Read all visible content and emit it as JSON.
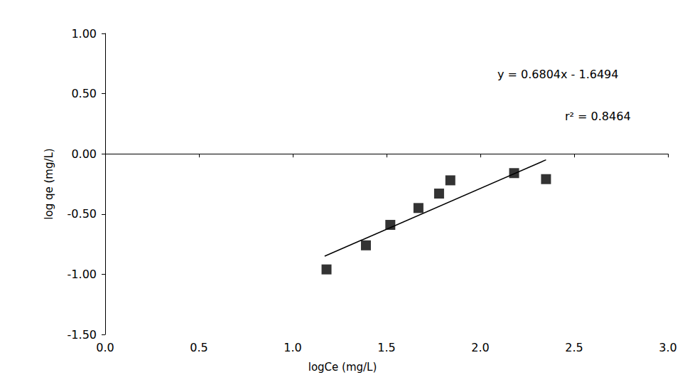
{
  "chart_data": {
    "type": "scatter",
    "x_label": "logCe (mg/L)",
    "y_label": "log qe (mg/L)",
    "xlim": [
      0,
      3
    ],
    "xticks": [
      {
        "value": 0,
        "label": "0.0"
      },
      0.5,
      {
        "value": 1,
        "label": "1.0"
      },
      1.5,
      {
        "value": 2,
        "label": "2.0"
      },
      2.5,
      {
        "value": 3,
        "label": "3.0"
      }
    ],
    "ylim": [
      -1.5,
      1
    ],
    "yticks": [
      {
        "value": -1.5,
        "label": "-1.50"
      },
      {
        "value": -1,
        "label": "-1.00"
      },
      {
        "value": -0.5,
        "label": "-0.50"
      },
      {
        "value": 0,
        "label": "0.00"
      },
      {
        "value": 0.5,
        "label": "0.50"
      },
      {
        "value": 1,
        "label": "1.00"
      }
    ],
    "grid": false,
    "series": [
      {
        "type": "scatter",
        "color": "#000000",
        "marker": "square",
        "x": [
          1.18,
          1.39,
          1.52,
          1.67,
          1.78,
          1.84,
          2.18,
          2.35
        ],
        "values": [
          -0.96,
          -0.76,
          -0.59,
          -0.45,
          -0.33,
          -0.22,
          -0.16,
          -0.21
        ]
      },
      {
        "type": "line",
        "color": "#000000",
        "line_style": "solid",
        "x": [
          1.17,
          2.35
        ],
        "values": [
          -0.85,
          -0.05
        ]
      }
    ],
    "annotations": [
      "y = 0.6804x - 1.6494",
      "r² = 0.8464"
    ]
  }
}
